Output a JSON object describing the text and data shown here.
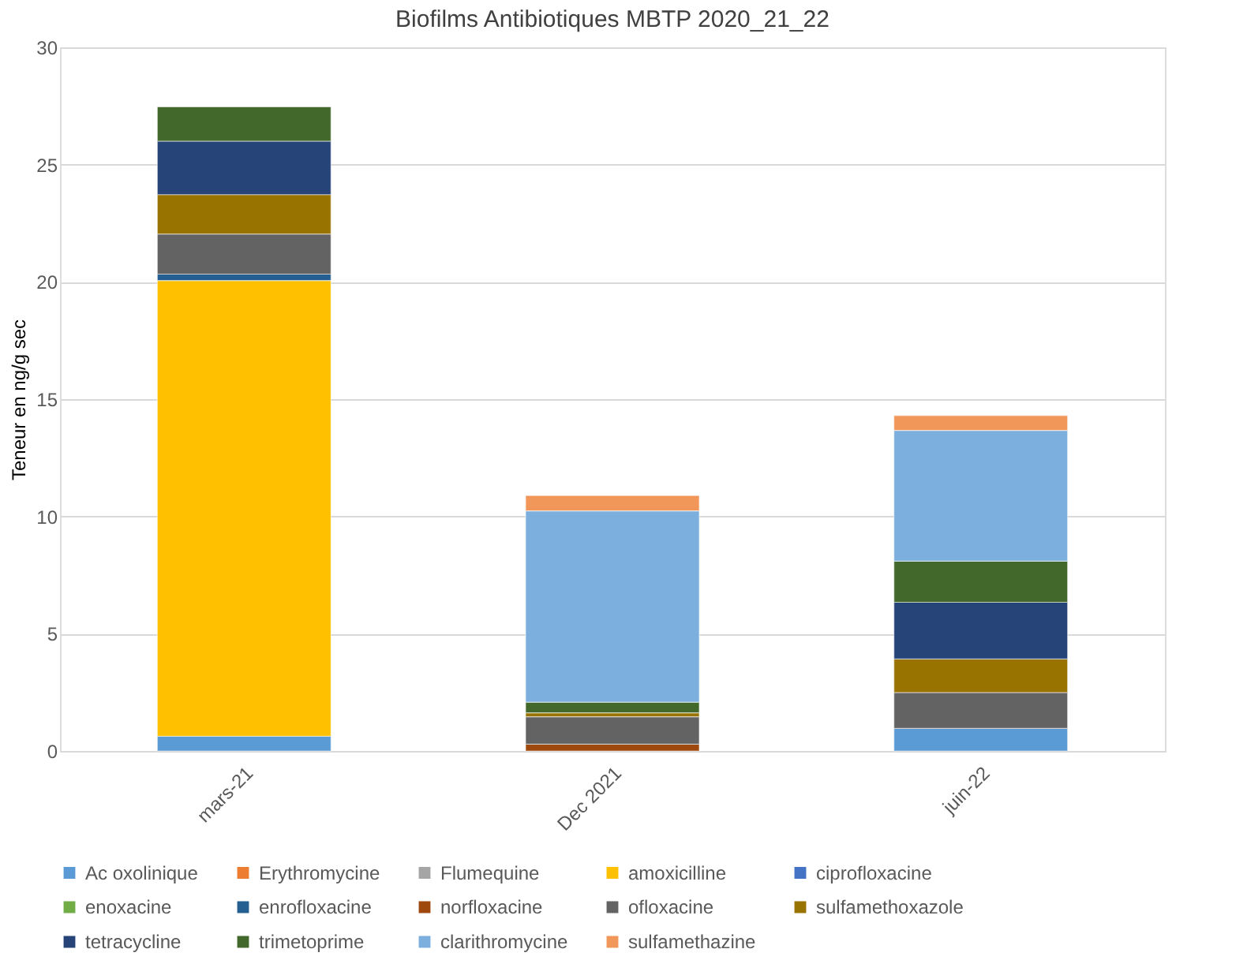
{
  "chart_data": {
    "type": "bar",
    "title": "Biofilms Antibiotiques MBTP 2020_21_22",
    "ylabel": "Teneur en ng/g sec",
    "categories": [
      "mars-21",
      "Dec 2021",
      "juin-22"
    ],
    "stacked": true,
    "ylim": [
      0,
      30
    ],
    "yticks": [
      0,
      5,
      10,
      15,
      20,
      25,
      30
    ],
    "grid": "y",
    "legend": "bottom",
    "series": [
      {
        "name": "Ac oxolinique",
        "color": "#5b9bd5",
        "values": [
          0.63,
          null,
          0.96
        ]
      },
      {
        "name": "Erythromycine",
        "color": "#ed7d31",
        "values": [
          null,
          null,
          null
        ]
      },
      {
        "name": "Flumequine",
        "color": "#a5a5a5",
        "values": [
          null,
          null,
          null
        ]
      },
      {
        "name": "amoxicilline",
        "color": "#ffc000",
        "values": [
          19.43,
          null,
          null
        ]
      },
      {
        "name": "ciprofloxacine",
        "color": "#4472c4",
        "values": [
          null,
          null,
          null
        ]
      },
      {
        "name": "enoxacine",
        "color": "#70ad47",
        "values": [
          null,
          null,
          null
        ]
      },
      {
        "name": "enrofloxacine",
        "color": "#255e91",
        "values": [
          0.27,
          null,
          null
        ]
      },
      {
        "name": "norfloxacine",
        "color": "#9e480e",
        "values": [
          null,
          0.29,
          null
        ]
      },
      {
        "name": "ofloxacine",
        "color": "#636363",
        "values": [
          1.71,
          1.17,
          1.53
        ]
      },
      {
        "name": "sulfamethoxazole",
        "color": "#997300",
        "values": [
          1.68,
          0.17,
          1.43
        ]
      },
      {
        "name": "tetracycline",
        "color": "#264478",
        "values": [
          2.28,
          null,
          2.42
        ]
      },
      {
        "name": "trimetoprime",
        "color": "#43682b",
        "values": [
          1.46,
          0.45,
          1.75
        ]
      },
      {
        "name": "clarithromycine",
        "color": "#7cafdd",
        "values": [
          null,
          8.16,
          5.58
        ]
      },
      {
        "name": "sulfamethazine",
        "color": "#f1975a",
        "values": [
          null,
          0.65,
          0.63
        ]
      }
    ]
  }
}
